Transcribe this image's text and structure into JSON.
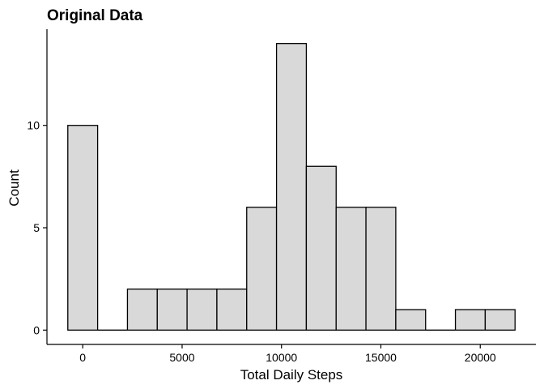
{
  "chart_data": {
    "type": "bar",
    "title": "Original Data",
    "xlabel": "Total Daily Steps",
    "ylabel": "Count",
    "bin_width": 1500,
    "bins": [
      {
        "x_start": -750,
        "x_end": 750,
        "count": 10
      },
      {
        "x_start": 750,
        "x_end": 2250,
        "count": 0
      },
      {
        "x_start": 2250,
        "x_end": 3750,
        "count": 2
      },
      {
        "x_start": 3750,
        "x_end": 5250,
        "count": 2
      },
      {
        "x_start": 5250,
        "x_end": 6750,
        "count": 2
      },
      {
        "x_start": 6750,
        "x_end": 8250,
        "count": 2
      },
      {
        "x_start": 8250,
        "x_end": 9750,
        "count": 6
      },
      {
        "x_start": 9750,
        "x_end": 11250,
        "count": 14
      },
      {
        "x_start": 11250,
        "x_end": 12750,
        "count": 8
      },
      {
        "x_start": 12750,
        "x_end": 14250,
        "count": 6
      },
      {
        "x_start": 14250,
        "x_end": 15750,
        "count": 6
      },
      {
        "x_start": 15750,
        "x_end": 17250,
        "count": 1
      },
      {
        "x_start": 17250,
        "x_end": 18750,
        "count": 0
      },
      {
        "x_start": 18750,
        "x_end": 20250,
        "count": 1
      },
      {
        "x_start": 20250,
        "x_end": 21750,
        "count": 1
      }
    ],
    "xlim": [
      -1800,
      22800
    ],
    "ylim": [
      -0.7,
      14.7
    ],
    "x_ticks": [
      0,
      5000,
      10000,
      15000,
      20000
    ],
    "x_tick_labels": [
      "0",
      "5000",
      "10000",
      "15000",
      "20000"
    ],
    "y_ticks": [
      0,
      5,
      10
    ],
    "y_tick_labels": [
      "0",
      "5",
      "10"
    ],
    "grid": false,
    "bar_fill": "#d9d9d9",
    "bar_stroke": "#000000"
  }
}
